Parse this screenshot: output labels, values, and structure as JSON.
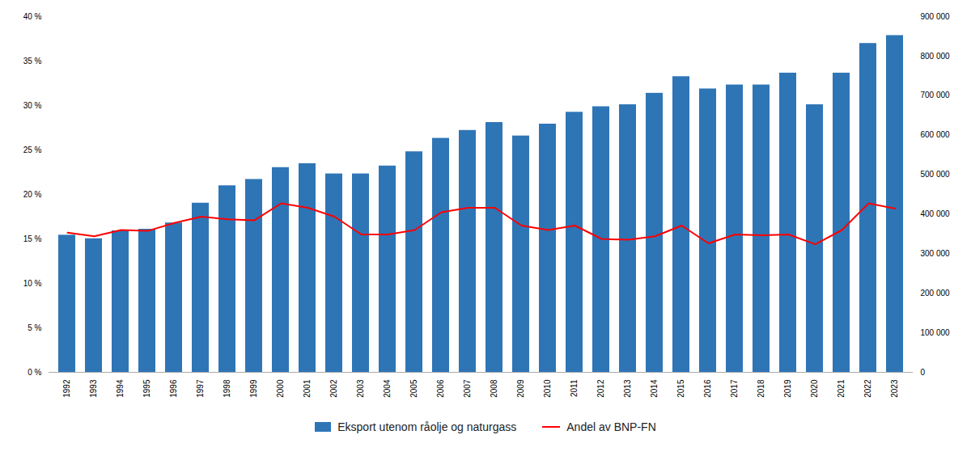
{
  "chart_data": {
    "type": "bar",
    "categories": [
      "1992",
      "1993",
      "1994",
      "1995",
      "1996",
      "1997",
      "1998",
      "1999",
      "2000",
      "2001",
      "2002",
      "2003",
      "2004",
      "2005",
      "2006",
      "2007",
      "2008",
      "2009",
      "2010",
      "2011",
      "2012",
      "2013",
      "2014",
      "2015",
      "2016",
      "2017",
      "2018",
      "2019",
      "2020",
      "2021",
      "2022",
      "2023"
    ],
    "series": [
      {
        "name": "Eksport utenom råolje og naturgass",
        "type": "bar",
        "color": "#2E75B6",
        "axis": "y2",
        "values": [
          347000,
          338000,
          358000,
          362000,
          378000,
          428000,
          472000,
          488000,
          518000,
          528000,
          502000,
          502000,
          522000,
          558000,
          592000,
          612000,
          632000,
          598000,
          628000,
          658000,
          672000,
          677000,
          706000,
          748000,
          717000,
          727000,
          727000,
          757000,
          677000,
          757000,
          832000,
          852000
        ]
      },
      {
        "name": "Andel av BNP-FN",
        "type": "line",
        "color": "#FF0000",
        "values": [
          0.157,
          0.153,
          0.16,
          0.159,
          0.168,
          0.175,
          0.172,
          0.171,
          0.19,
          0.185,
          0.175,
          0.155,
          0.155,
          0.16,
          0.18,
          0.185,
          0.185,
          0.165,
          0.16,
          0.165,
          0.15,
          0.149,
          0.153,
          0.165,
          0.145,
          0.155,
          0.154,
          0.155,
          0.144,
          0.16,
          0.19,
          0.184
        ]
      }
    ],
    "ylim": [
      0.0,
      0.4
    ],
    "yticks": [
      {
        "value": 0.0,
        "label": "0 %"
      },
      {
        "value": 0.05,
        "label": "5 %"
      },
      {
        "value": 0.1,
        "label": "10 %"
      },
      {
        "value": 0.15,
        "label": "15 %"
      },
      {
        "value": 0.2,
        "label": "20 %"
      },
      {
        "value": 0.25,
        "label": "25 %"
      },
      {
        "value": 0.3,
        "label": "30 %"
      },
      {
        "value": 0.35,
        "label": "35 %"
      },
      {
        "value": 0.4,
        "label": "40 %"
      }
    ],
    "y2lim": [
      0,
      900000
    ],
    "y2ticks": [
      0,
      {
        "value": 100000,
        "label": "100 000"
      },
      {
        "value": 200000,
        "label": "200 000"
      },
      {
        "value": 300000,
        "label": "300 000"
      },
      {
        "value": 400000,
        "label": "400 000"
      },
      {
        "value": 500000,
        "label": "500 000"
      },
      {
        "value": 600000,
        "label": "600 000"
      },
      {
        "value": 700000,
        "label": "700 000"
      },
      {
        "value": 800000,
        "label": "800 000"
      },
      {
        "value": 900000,
        "label": "900 000"
      }
    ],
    "grid": false,
    "legend": "bottom"
  }
}
